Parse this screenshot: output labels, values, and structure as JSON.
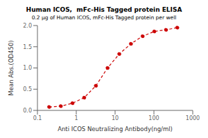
{
  "chart_data": {
    "type": "line",
    "title": "Human ICOS,  mFc-His Tagged protein ELISA",
    "subtitle": "0.2 μg of Human ICOS, mFc-His Tagged protein per well",
    "xlabel": "Anti ICOS Neutralizing Antibody(ng/ml)",
    "ylabel": "Mean Abs.(OD450)",
    "x": [
      0.2,
      0.4,
      0.8,
      1.6,
      3.2,
      6.4,
      12.8,
      25.6,
      51.2,
      102.4,
      204.8,
      400
    ],
    "values": [
      0.08,
      0.1,
      0.17,
      0.3,
      0.58,
      1.0,
      1.33,
      1.57,
      1.75,
      1.86,
      1.9,
      1.95
    ],
    "color": "#cc0000",
    "marker": "o",
    "line_style": "dashed",
    "log": "x",
    "grid": false,
    "xlim": [
      0.1,
      1000
    ],
    "ylim": [
      0.0,
      2.0
    ],
    "xticks": [
      0.1,
      1,
      10,
      100,
      1000
    ],
    "yticks": [
      {
        "value": 0,
        "label": "0.0"
      },
      0.5,
      {
        "value": 1,
        "label": "1.0"
      },
      1.5,
      {
        "value": 2,
        "label": "2.0"
      }
    ]
  }
}
